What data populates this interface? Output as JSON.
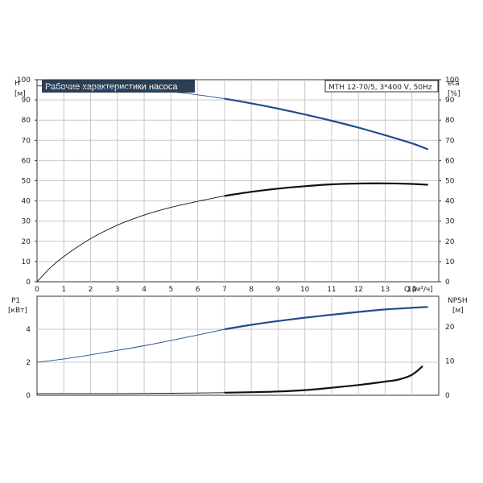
{
  "chart_data": [
    {
      "type": "line",
      "title": "Рабочие характеристики насоса",
      "subtitle": "MTH 12-70/5, 3*400 V, 50Hz",
      "left_axis": {
        "label": "H",
        "unit": "[м]",
        "ylim": [
          0,
          100
        ],
        "ticks": [
          0,
          10,
          20,
          30,
          40,
          50,
          60,
          70,
          80,
          90,
          100
        ]
      },
      "right_axis": {
        "label": "eta",
        "unit": "[%]",
        "ylim": [
          0,
          100
        ],
        "ticks": [
          0,
          10,
          20,
          30,
          40,
          50,
          60,
          70,
          80,
          90,
          100
        ]
      },
      "x_axis": {
        "label": "Q [м³/ч]",
        "xlim": [
          0,
          15
        ],
        "ticks": [
          0,
          1,
          2,
          3,
          4,
          5,
          6,
          7,
          8,
          9,
          10,
          11,
          12,
          13,
          14
        ]
      },
      "grid": true,
      "series": [
        {
          "name": "H",
          "axis": "left",
          "color": "#1f4e8c",
          "x": [
            0,
            1,
            2,
            3,
            4,
            5,
            6,
            7,
            8,
            9,
            10,
            11,
            12,
            13,
            14,
            14.6
          ],
          "y": [
            97,
            96.5,
            96,
            95.6,
            95,
            94,
            92.5,
            90.6,
            88.3,
            85.7,
            82.8,
            79.7,
            76.3,
            72.5,
            68.5,
            65.5
          ]
        },
        {
          "name": "eta",
          "axis": "right",
          "color": "#111111",
          "x": [
            0,
            0.5,
            1,
            2,
            3,
            4,
            5,
            6,
            7,
            8,
            9,
            10,
            11,
            12,
            13,
            14,
            14.6
          ],
          "y": [
            0,
            7,
            12.5,
            21.3,
            28,
            33,
            36.8,
            39.8,
            42.5,
            44.5,
            46.1,
            47.3,
            48.2,
            48.6,
            48.7,
            48.4,
            48
          ]
        }
      ]
    },
    {
      "type": "line",
      "left_axis": {
        "label": "P1",
        "unit": "[кВт]",
        "ylim": [
          0,
          6
        ],
        "ticks": [
          0,
          2,
          4
        ]
      },
      "right_axis": {
        "label": "NPSH",
        "unit": "[м]",
        "ylim": [
          0,
          29
        ],
        "ticks": [
          0,
          10,
          20
        ]
      },
      "x_axis": {
        "xlim": [
          0,
          15
        ]
      },
      "grid": true,
      "series": [
        {
          "name": "P1",
          "axis": "left",
          "color": "#1f4e8c",
          "x": [
            0,
            1,
            2,
            3,
            4,
            5,
            6,
            7,
            8,
            9,
            10,
            11,
            12,
            13,
            14,
            14.6
          ],
          "y": [
            2.0,
            2.2,
            2.45,
            2.72,
            3.0,
            3.32,
            3.65,
            4.0,
            4.27,
            4.5,
            4.7,
            4.88,
            5.05,
            5.2,
            5.3,
            5.35
          ]
        },
        {
          "name": "NPSH",
          "axis": "right",
          "color": "#111111",
          "x": [
            0,
            1,
            2,
            3,
            4,
            5,
            6,
            7,
            8,
            9,
            10,
            11,
            12,
            13,
            13.5,
            14,
            14.4
          ],
          "y": [
            0.5,
            0.5,
            0.5,
            0.5,
            0.55,
            0.6,
            0.65,
            0.75,
            0.9,
            1.1,
            1.5,
            2.2,
            3.0,
            4.0,
            4.6,
            6.0,
            8.5
          ]
        }
      ]
    }
  ]
}
